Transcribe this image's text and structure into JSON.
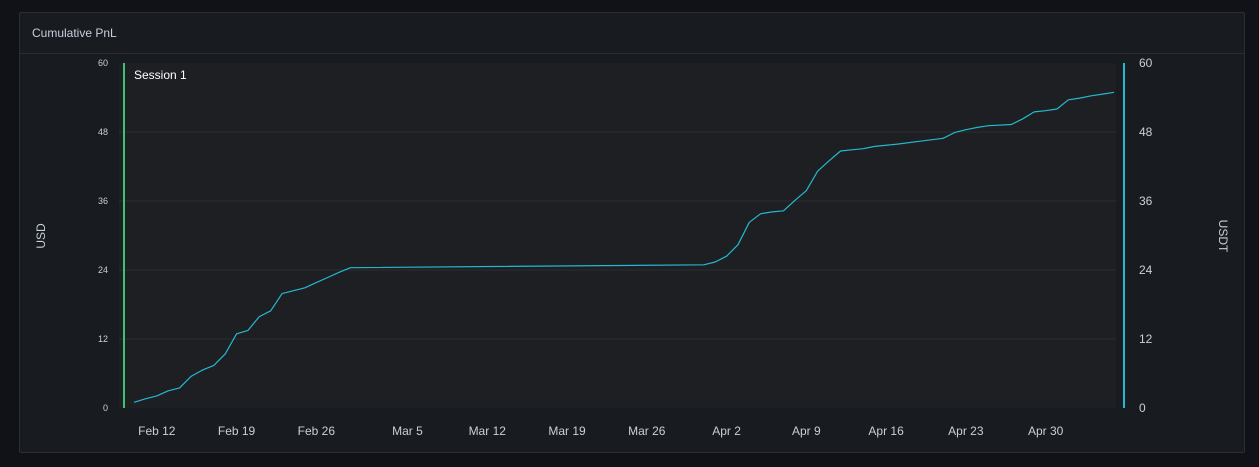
{
  "panel": {
    "title": "Cumulative PnL"
  },
  "chart_data": {
    "type": "line",
    "title": "Cumulative PnL",
    "ylabel_left": "USD",
    "ylabel_right": "USDT",
    "ylim": [
      0,
      60
    ],
    "yticks_left": [
      "0",
      "12",
      "24",
      "36",
      "48",
      "60"
    ],
    "yticks_right": [
      "0",
      "12",
      "24",
      "36",
      "48",
      "60"
    ],
    "xlim": [
      "2024-02-10",
      "2024-05-06"
    ],
    "x_ticks": [
      {
        "date": "2024-02-12",
        "label": "Feb 12"
      },
      {
        "date": "2024-02-19",
        "label": "Feb 19"
      },
      {
        "date": "2024-02-26",
        "label": "Feb 26"
      },
      {
        "date": "2024-03-05",
        "label": "Mar 5"
      },
      {
        "date": "2024-03-12",
        "label": "Mar 12"
      },
      {
        "date": "2024-03-19",
        "label": "Mar 19"
      },
      {
        "date": "2024-03-26",
        "label": "Mar 26"
      },
      {
        "date": "2024-04-02",
        "label": "Apr 2"
      },
      {
        "date": "2024-04-09",
        "label": "Apr 9"
      },
      {
        "date": "2024-04-16",
        "label": "Apr 16"
      },
      {
        "date": "2024-04-23",
        "label": "Apr 23"
      },
      {
        "date": "2024-04-30",
        "label": "Apr 30"
      }
    ],
    "grid": true,
    "annotations": [
      {
        "date": "2024-02-10",
        "text": "Session 1",
        "color": "#3cc56e"
      }
    ],
    "series_color": "#23b9d1",
    "series": [
      {
        "points": [
          [
            "2024-02-10",
            1.0
          ],
          [
            "2024-02-11",
            1.6
          ],
          [
            "2024-02-12",
            2.1
          ],
          [
            "2024-02-13",
            3.0
          ],
          [
            "2024-02-14",
            3.5
          ],
          [
            "2024-02-15",
            5.5
          ],
          [
            "2024-02-16",
            6.6
          ],
          [
            "2024-02-17",
            7.4
          ],
          [
            "2024-02-18",
            9.4
          ],
          [
            "2024-02-19",
            12.9
          ],
          [
            "2024-02-20",
            13.5
          ],
          [
            "2024-02-21",
            15.9
          ],
          [
            "2024-02-22",
            16.9
          ],
          [
            "2024-02-23",
            19.9
          ],
          [
            "2024-02-24",
            20.4
          ],
          [
            "2024-02-25",
            20.9
          ],
          [
            "2024-02-26",
            21.8
          ],
          [
            "2024-02-27",
            22.7
          ],
          [
            "2024-02-28",
            23.6
          ],
          [
            "2024-02-29",
            24.4
          ],
          [
            "2024-03-31",
            24.9
          ],
          [
            "2024-04-01",
            25.4
          ],
          [
            "2024-04-02",
            26.4
          ],
          [
            "2024-04-03",
            28.4
          ],
          [
            "2024-04-04",
            32.3
          ],
          [
            "2024-04-05",
            33.8
          ],
          [
            "2024-04-06",
            34.1
          ],
          [
            "2024-04-07",
            34.3
          ],
          [
            "2024-04-08",
            36.1
          ],
          [
            "2024-04-09",
            37.8
          ],
          [
            "2024-04-10",
            41.2
          ],
          [
            "2024-04-11",
            43.0
          ],
          [
            "2024-04-12",
            44.7
          ],
          [
            "2024-04-13",
            44.9
          ],
          [
            "2024-04-14",
            45.1
          ],
          [
            "2024-04-15",
            45.5
          ],
          [
            "2024-04-17",
            45.9
          ],
          [
            "2024-04-19",
            46.4
          ],
          [
            "2024-04-21",
            46.9
          ],
          [
            "2024-04-22",
            47.9
          ],
          [
            "2024-04-23",
            48.4
          ],
          [
            "2024-04-24",
            48.8
          ],
          [
            "2024-04-25",
            49.1
          ],
          [
            "2024-04-27",
            49.3
          ],
          [
            "2024-04-28",
            50.3
          ],
          [
            "2024-04-29",
            51.5
          ],
          [
            "2024-04-30",
            51.7
          ],
          [
            "2024-05-01",
            52.0
          ],
          [
            "2024-05-02",
            53.6
          ],
          [
            "2024-05-03",
            53.9
          ],
          [
            "2024-05-04",
            54.3
          ],
          [
            "2024-05-05",
            54.6
          ],
          [
            "2024-05-06",
            54.9
          ]
        ]
      }
    ]
  }
}
